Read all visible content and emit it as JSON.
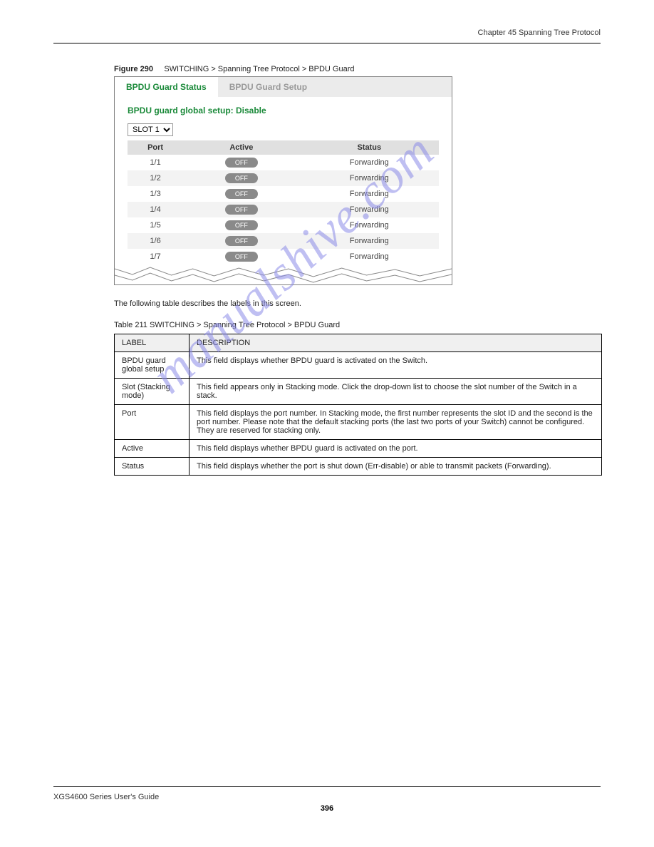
{
  "header": {
    "chapter": "Chapter 45 Spanning Tree Protocol",
    "product": "XGS4600 Series User's Guide"
  },
  "figure": {
    "caption_prefix": "Figure 290",
    "caption_text": "SWITCHING > Spanning Tree Protocol > BPDU Guard",
    "tabs": [
      "BPDU Guard Status",
      "BPDU Guard Setup"
    ],
    "status_title": "BPDU guard global setup: Disable",
    "slot_option": "SLOT 1",
    "columns": [
      "Port",
      "Active",
      "Status"
    ],
    "rows": [
      {
        "port": "1/1",
        "active": "OFF",
        "status": "Forwarding"
      },
      {
        "port": "1/2",
        "active": "OFF",
        "status": "Forwarding"
      },
      {
        "port": "1/3",
        "active": "OFF",
        "status": "Forwarding"
      },
      {
        "port": "1/4",
        "active": "OFF",
        "status": "Forwarding"
      },
      {
        "port": "1/5",
        "active": "OFF",
        "status": "Forwarding"
      },
      {
        "port": "1/6",
        "active": "OFF",
        "status": "Forwarding"
      },
      {
        "port": "1/7",
        "active": "OFF",
        "status": "Forwarding"
      }
    ]
  },
  "desc": {
    "intro": "The following table describes the labels in this screen.",
    "caption": "Table 211   SWITCHING > Spanning Tree Protocol > BPDU Guard",
    "headers": [
      "LABEL",
      "DESCRIPTION"
    ],
    "rows": [
      {
        "label": "BPDU guard global setup",
        "desc": "This field displays whether BPDU guard is activated on the Switch."
      },
      {
        "label": "Slot (Stacking mode)",
        "desc": "This field appears only in Stacking mode. Click the drop-down list to choose the slot number of the Switch in a stack."
      },
      {
        "label": "Port",
        "desc_plain": "This field displays the port number. In Stacking mode, the first number represents the slot ID and the second is the port number. Please note that the default stacking ports (the last two ports of your Switch) cannot be configured. They are reserved for stacking only."
      },
      {
        "label": "Active",
        "desc": "This field displays whether BPDU guard is activated on the port."
      },
      {
        "label": "Status",
        "desc_plain": "This field displays whether the port is shut down (Err-disable) or able to transmit packets (Forwarding)."
      }
    ]
  },
  "watermark": "manualshive.com",
  "footer": {
    "page": "396"
  }
}
